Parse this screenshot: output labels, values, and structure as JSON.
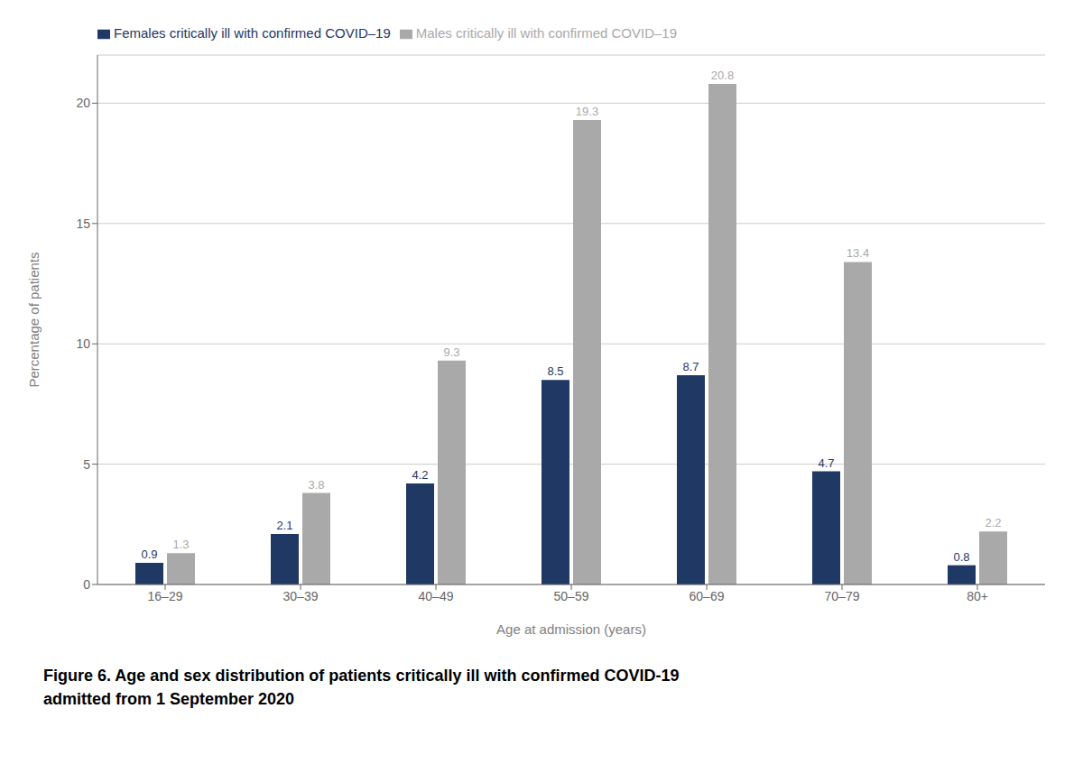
{
  "chart_data": {
    "type": "bar",
    "title": "Figure 6.  Age and sex distribution of patients critically ill with confirmed COVID-19",
    "subtitle": "admitted from 1 September 2020",
    "x_label": "Age at admission (years)",
    "y_label": "Percentage of patients",
    "categories": [
      "16–29",
      "30–39",
      "40–49",
      "50–59",
      "60–69",
      "70–79",
      "80+"
    ],
    "series": [
      {
        "name": "Females critically ill with confirmed COVID–19",
        "color": "#1f3864",
        "values": [
          0.9,
          2.1,
          4.2,
          8.5,
          8.7,
          4.7,
          0.8
        ]
      },
      {
        "name": "Males critically ill with confirmed COVID–19",
        "color": "#a9a9a9",
        "values": [
          1.3,
          3.8,
          9.3,
          19.3,
          20.8,
          13.4,
          2.2
        ]
      }
    ],
    "ylim": [
      0,
      22
    ],
    "yticks": [
      0,
      5,
      10,
      15,
      20
    ],
    "grid": true,
    "legend": "top-left",
    "data_labels": true
  }
}
